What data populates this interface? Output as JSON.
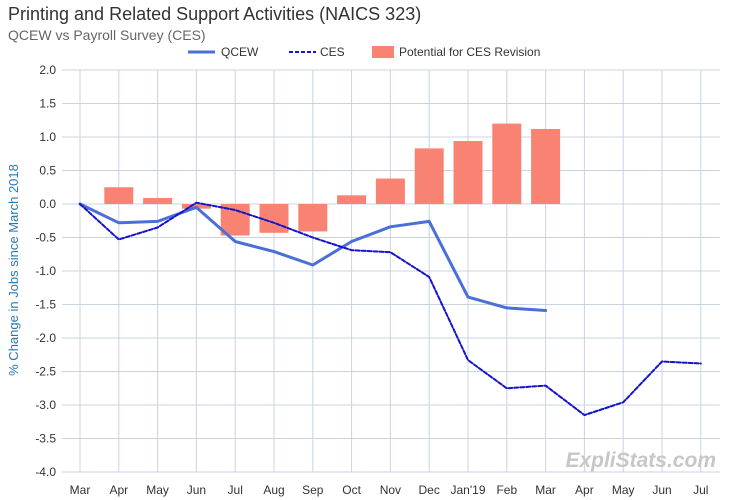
{
  "chart_data": {
    "type": "bar",
    "title": "Printing and Related Support Activities (NAICS 323)",
    "subtitle": "QCEW vs Payroll Survey (CES)",
    "ylabel": "% Change in Jobs since March 2018",
    "xlabel": "",
    "ylim": [
      -4.0,
      2.0
    ],
    "ytick_step": 0.5,
    "grid": true,
    "legend_position": "top-center",
    "categories": [
      "Mar",
      "Apr",
      "May",
      "Jun",
      "Jul",
      "Aug",
      "Sep",
      "Oct",
      "Nov",
      "Dec",
      "Jan'19",
      "Feb",
      "Mar",
      "Apr",
      "May",
      "Jun",
      "Jul"
    ],
    "series": [
      {
        "name": "QCEW",
        "kind": "line",
        "style": "solid",
        "color": "#4a6fd8",
        "values": [
          0.0,
          -0.28,
          -0.26,
          -0.05,
          -0.56,
          -0.71,
          -0.91,
          -0.56,
          -0.34,
          -0.26,
          -1.39,
          -1.55,
          -1.59,
          null,
          null,
          null,
          null
        ]
      },
      {
        "name": "CES",
        "kind": "line",
        "style": "dashed",
        "color": "#1414c8",
        "values": [
          0.0,
          -0.53,
          -0.35,
          0.02,
          -0.09,
          -0.28,
          -0.5,
          -0.69,
          -0.72,
          -1.09,
          -2.33,
          -2.75,
          -2.71,
          -3.15,
          -2.96,
          -2.35,
          -2.38
        ]
      },
      {
        "name": "Potential for CES Revision",
        "kind": "bar",
        "color": "#f98373",
        "values": [
          null,
          0.25,
          0.09,
          -0.07,
          -0.47,
          -0.43,
          -0.41,
          0.13,
          0.38,
          0.83,
          0.94,
          1.2,
          1.12,
          null,
          null,
          null,
          null
        ]
      }
    ]
  },
  "watermark": "ExpliStats.com"
}
